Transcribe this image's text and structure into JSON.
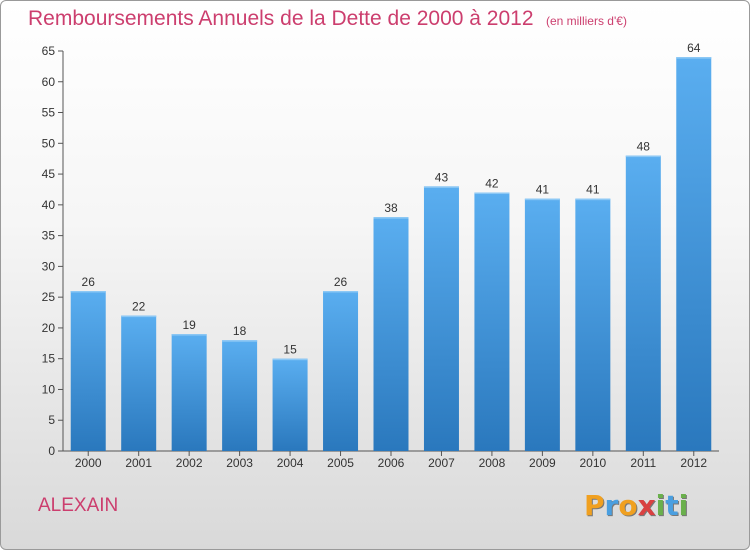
{
  "chart_data": {
    "type": "bar",
    "title": "Remboursements Annuels de la Dette de 2000 à 2012",
    "subtitle": "(en milliers d'€)",
    "xlabel": "",
    "ylabel": "",
    "categories": [
      "2000",
      "2001",
      "2002",
      "2003",
      "2004",
      "2005",
      "2006",
      "2007",
      "2008",
      "2009",
      "2010",
      "2011",
      "2012"
    ],
    "values": [
      26,
      22,
      19,
      18,
      15,
      26,
      38,
      43,
      42,
      41,
      41,
      48,
      64
    ],
    "ylim": [
      0,
      65
    ],
    "yticks": [
      0,
      5,
      10,
      15,
      20,
      25,
      30,
      35,
      40,
      45,
      50,
      55,
      60,
      65
    ],
    "grid": false,
    "bar_color": "#4a9fe0",
    "bar_color_dark": "#2a7ac0"
  },
  "commune": "ALEXAIN",
  "brand": {
    "letters": [
      "P",
      "r",
      "o",
      "x",
      "i",
      "t",
      "i"
    ],
    "colors": [
      "#f0a020",
      "#4a9fe0",
      "#f0a020",
      "#d94040",
      "#6ab04c",
      "#4a9fe0",
      "#6ab04c"
    ]
  }
}
